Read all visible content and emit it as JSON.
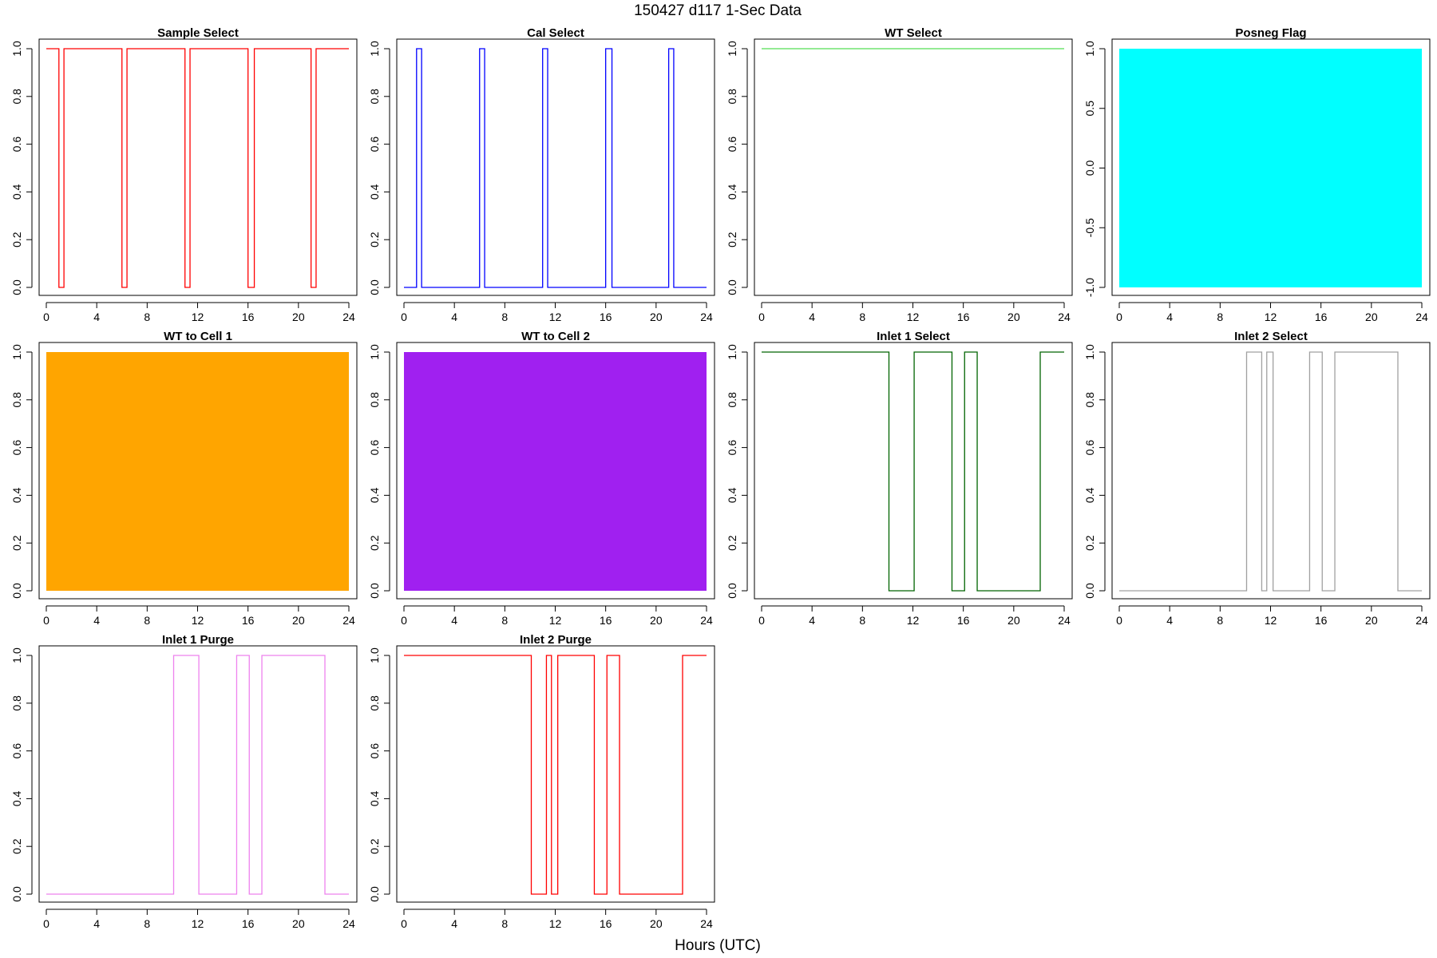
{
  "figure": {
    "suptitle": "150427   d117   1-Sec Data",
    "xlabel": "Hours (UTC)"
  },
  "chart_data": [
    {
      "type": "line",
      "title": "Sample Select",
      "color": "#ff0000",
      "x": [
        0,
        1.0,
        1.0,
        1.4,
        1.4,
        6.0,
        6.0,
        6.4,
        6.4,
        11.0,
        11.0,
        11.4,
        11.4,
        16.0,
        16.0,
        16.5,
        16.5,
        21.0,
        21.0,
        21.4,
        21.4,
        24
      ],
      "y": [
        1,
        1,
        0,
        0,
        1,
        1,
        0,
        0,
        1,
        1,
        0,
        0,
        1,
        1,
        0,
        0,
        1,
        1,
        0,
        0,
        1,
        1
      ],
      "xlim": [
        0,
        24
      ],
      "ylim": [
        0,
        1
      ],
      "xticks": [
        "0",
        "4",
        "8",
        "12",
        "16",
        "20",
        "24"
      ],
      "yticks": [
        "0.0",
        "0.2",
        "0.4",
        "0.6",
        "0.8",
        "1.0"
      ]
    },
    {
      "type": "line",
      "title": "Cal Select",
      "color": "#0000ff",
      "x": [
        0,
        1.0,
        1.0,
        1.4,
        1.4,
        6.0,
        6.0,
        6.4,
        6.4,
        11.0,
        11.0,
        11.4,
        11.4,
        16.0,
        16.0,
        16.5,
        16.5,
        21.0,
        21.0,
        21.4,
        21.4,
        24
      ],
      "y": [
        0,
        0,
        1,
        1,
        0,
        0,
        1,
        1,
        0,
        0,
        1,
        1,
        0,
        0,
        1,
        1,
        0,
        0,
        1,
        1,
        0,
        0
      ],
      "xlim": [
        0,
        24
      ],
      "ylim": [
        0,
        1
      ],
      "xticks": [
        "0",
        "4",
        "8",
        "12",
        "16",
        "20",
        "24"
      ],
      "yticks": [
        "0.0",
        "0.2",
        "0.4",
        "0.6",
        "0.8",
        "1.0"
      ]
    },
    {
      "type": "line",
      "title": "WT Select",
      "color": "#55dd55",
      "x": [
        0,
        24
      ],
      "y": [
        1,
        1
      ],
      "xlim": [
        0,
        24
      ],
      "ylim": [
        0,
        1
      ],
      "xticks": [
        "0",
        "4",
        "8",
        "12",
        "16",
        "20",
        "24"
      ],
      "yticks": [
        "0.0",
        "0.2",
        "0.4",
        "0.6",
        "0.8",
        "1.0"
      ]
    },
    {
      "type": "area",
      "title": "Posneg Flag",
      "color": "#00ffff",
      "x": [
        0,
        24
      ],
      "y": [
        -1,
        1
      ],
      "xlim": [
        0,
        24
      ],
      "ylim": [
        -1,
        1
      ],
      "xticks": [
        "0",
        "4",
        "8",
        "12",
        "16",
        "20",
        "24"
      ],
      "yticks": [
        "-1.0",
        "-0.5",
        "0.0",
        "0.5",
        "1.0"
      ]
    },
    {
      "type": "area",
      "title": "WT to Cell 1",
      "color": "#ffa500",
      "x": [
        0,
        24
      ],
      "y": [
        0,
        1
      ],
      "xlim": [
        0,
        24
      ],
      "ylim": [
        0,
        1
      ],
      "xticks": [
        "0",
        "4",
        "8",
        "12",
        "16",
        "20",
        "24"
      ],
      "yticks": [
        "0.0",
        "0.2",
        "0.4",
        "0.6",
        "0.8",
        "1.0"
      ]
    },
    {
      "type": "area",
      "title": "WT to Cell 2",
      "color": "#a020f0",
      "x": [
        0,
        24
      ],
      "y": [
        0,
        1
      ],
      "xlim": [
        0,
        24
      ],
      "ylim": [
        0,
        1
      ],
      "xticks": [
        "0",
        "4",
        "8",
        "12",
        "16",
        "20",
        "24"
      ],
      "yticks": [
        "0.0",
        "0.2",
        "0.4",
        "0.6",
        "0.8",
        "1.0"
      ]
    },
    {
      "type": "line",
      "title": "Inlet 1 Select",
      "color": "#006400",
      "x": [
        0,
        10.1,
        10.1,
        12.1,
        12.1,
        15.1,
        15.1,
        16.1,
        16.1,
        17.1,
        17.1,
        22.1,
        22.1,
        24
      ],
      "y": [
        1,
        1,
        0,
        0,
        1,
        1,
        0,
        0,
        1,
        1,
        0,
        0,
        1,
        1
      ],
      "xlim": [
        0,
        24
      ],
      "ylim": [
        0,
        1
      ],
      "xticks": [
        "0",
        "4",
        "8",
        "12",
        "16",
        "20",
        "24"
      ],
      "yticks": [
        "0.0",
        "0.2",
        "0.4",
        "0.6",
        "0.8",
        "1.0"
      ]
    },
    {
      "type": "line",
      "title": "Inlet 2 Select",
      "color": "#a0a0a0",
      "x": [
        0,
        10.1,
        10.1,
        11.3,
        11.3,
        11.7,
        11.7,
        12.2,
        12.2,
        15.1,
        15.1,
        16.1,
        16.1,
        17.1,
        17.1,
        22.1,
        22.1,
        24
      ],
      "y": [
        0,
        0,
        1,
        1,
        0,
        0,
        1,
        1,
        0,
        0,
        1,
        1,
        0,
        0,
        1,
        1,
        0,
        0
      ],
      "xlim": [
        0,
        24
      ],
      "ylim": [
        0,
        1
      ],
      "xticks": [
        "0",
        "4",
        "8",
        "12",
        "16",
        "20",
        "24"
      ],
      "yticks": [
        "0.0",
        "0.2",
        "0.4",
        "0.6",
        "0.8",
        "1.0"
      ]
    },
    {
      "type": "line",
      "title": "Inlet 1 Purge",
      "color": "#ee82ee",
      "x": [
        0,
        10.1,
        10.1,
        12.1,
        12.1,
        15.1,
        15.1,
        16.1,
        16.1,
        17.1,
        17.1,
        22.1,
        22.1,
        24
      ],
      "y": [
        0,
        0,
        1,
        1,
        0,
        0,
        1,
        1,
        0,
        0,
        1,
        1,
        0,
        0
      ],
      "xlim": [
        0,
        24
      ],
      "ylim": [
        0,
        1
      ],
      "xticks": [
        "0",
        "4",
        "8",
        "12",
        "16",
        "20",
        "24"
      ],
      "yticks": [
        "0.0",
        "0.2",
        "0.4",
        "0.6",
        "0.8",
        "1.0"
      ]
    },
    {
      "type": "line",
      "title": "Inlet 2 Purge",
      "color": "#ff0000",
      "x": [
        0,
        10.1,
        10.1,
        11.3,
        11.3,
        11.7,
        11.7,
        12.2,
        12.2,
        15.1,
        15.1,
        16.1,
        16.1,
        17.1,
        17.1,
        22.1,
        22.1,
        24
      ],
      "y": [
        1,
        1,
        0,
        0,
        1,
        1,
        0,
        0,
        1,
        1,
        0,
        0,
        1,
        1,
        0,
        0,
        1,
        1
      ],
      "xlim": [
        0,
        24
      ],
      "ylim": [
        0,
        1
      ],
      "xticks": [
        "0",
        "4",
        "8",
        "12",
        "16",
        "20",
        "24"
      ],
      "yticks": [
        "0.0",
        "0.2",
        "0.4",
        "0.6",
        "0.8",
        "1.0"
      ]
    }
  ]
}
